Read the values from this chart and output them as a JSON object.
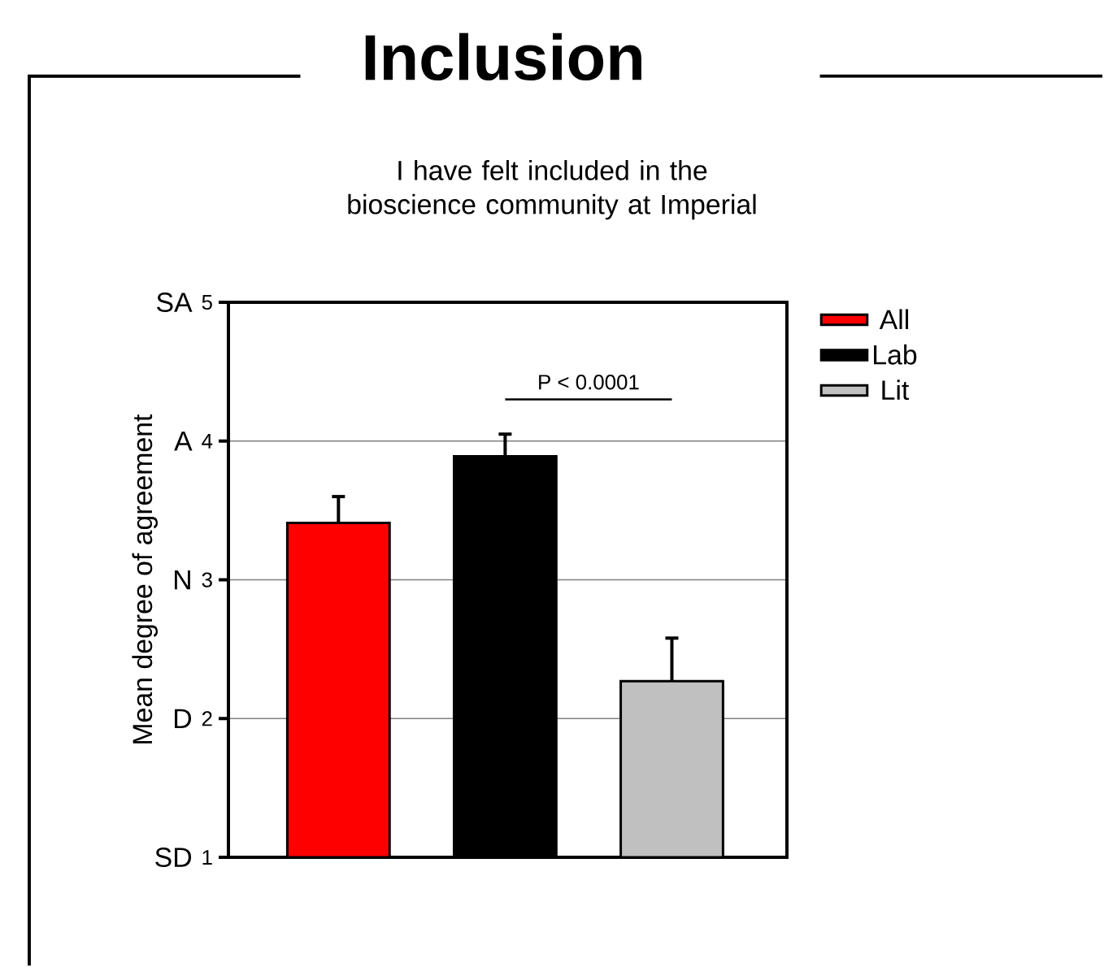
{
  "chart_data": {
    "type": "bar",
    "title": "Inclusion",
    "subtitle": "I have felt included in the bioscience community at Imperial",
    "ylabel": "Mean degree of agreement",
    "categories": [
      null,
      null,
      null
    ],
    "series": [
      {
        "name": "All",
        "color": "#ff0000",
        "values": [
          3.41,
          null,
          null
        ],
        "errors": [
          0.19,
          null,
          null
        ]
      },
      {
        "name": "Lab",
        "color": "#000000",
        "values": [
          null,
          3.89,
          null
        ],
        "errors": [
          null,
          0.16,
          null
        ]
      },
      {
        "name": "Lit",
        "color": "#c0c0c0",
        "values": [
          null,
          null,
          2.27
        ],
        "errors": [
          null,
          null,
          0.31
        ]
      }
    ],
    "ylim": [
      1,
      5
    ],
    "yticks": [
      1,
      2,
      3,
      4,
      5
    ],
    "grid": "y",
    "legend": "right",
    "annotations": [
      "P < 0.0001",
      "SD",
      "D",
      "N",
      "A",
      "SA"
    ]
  }
}
